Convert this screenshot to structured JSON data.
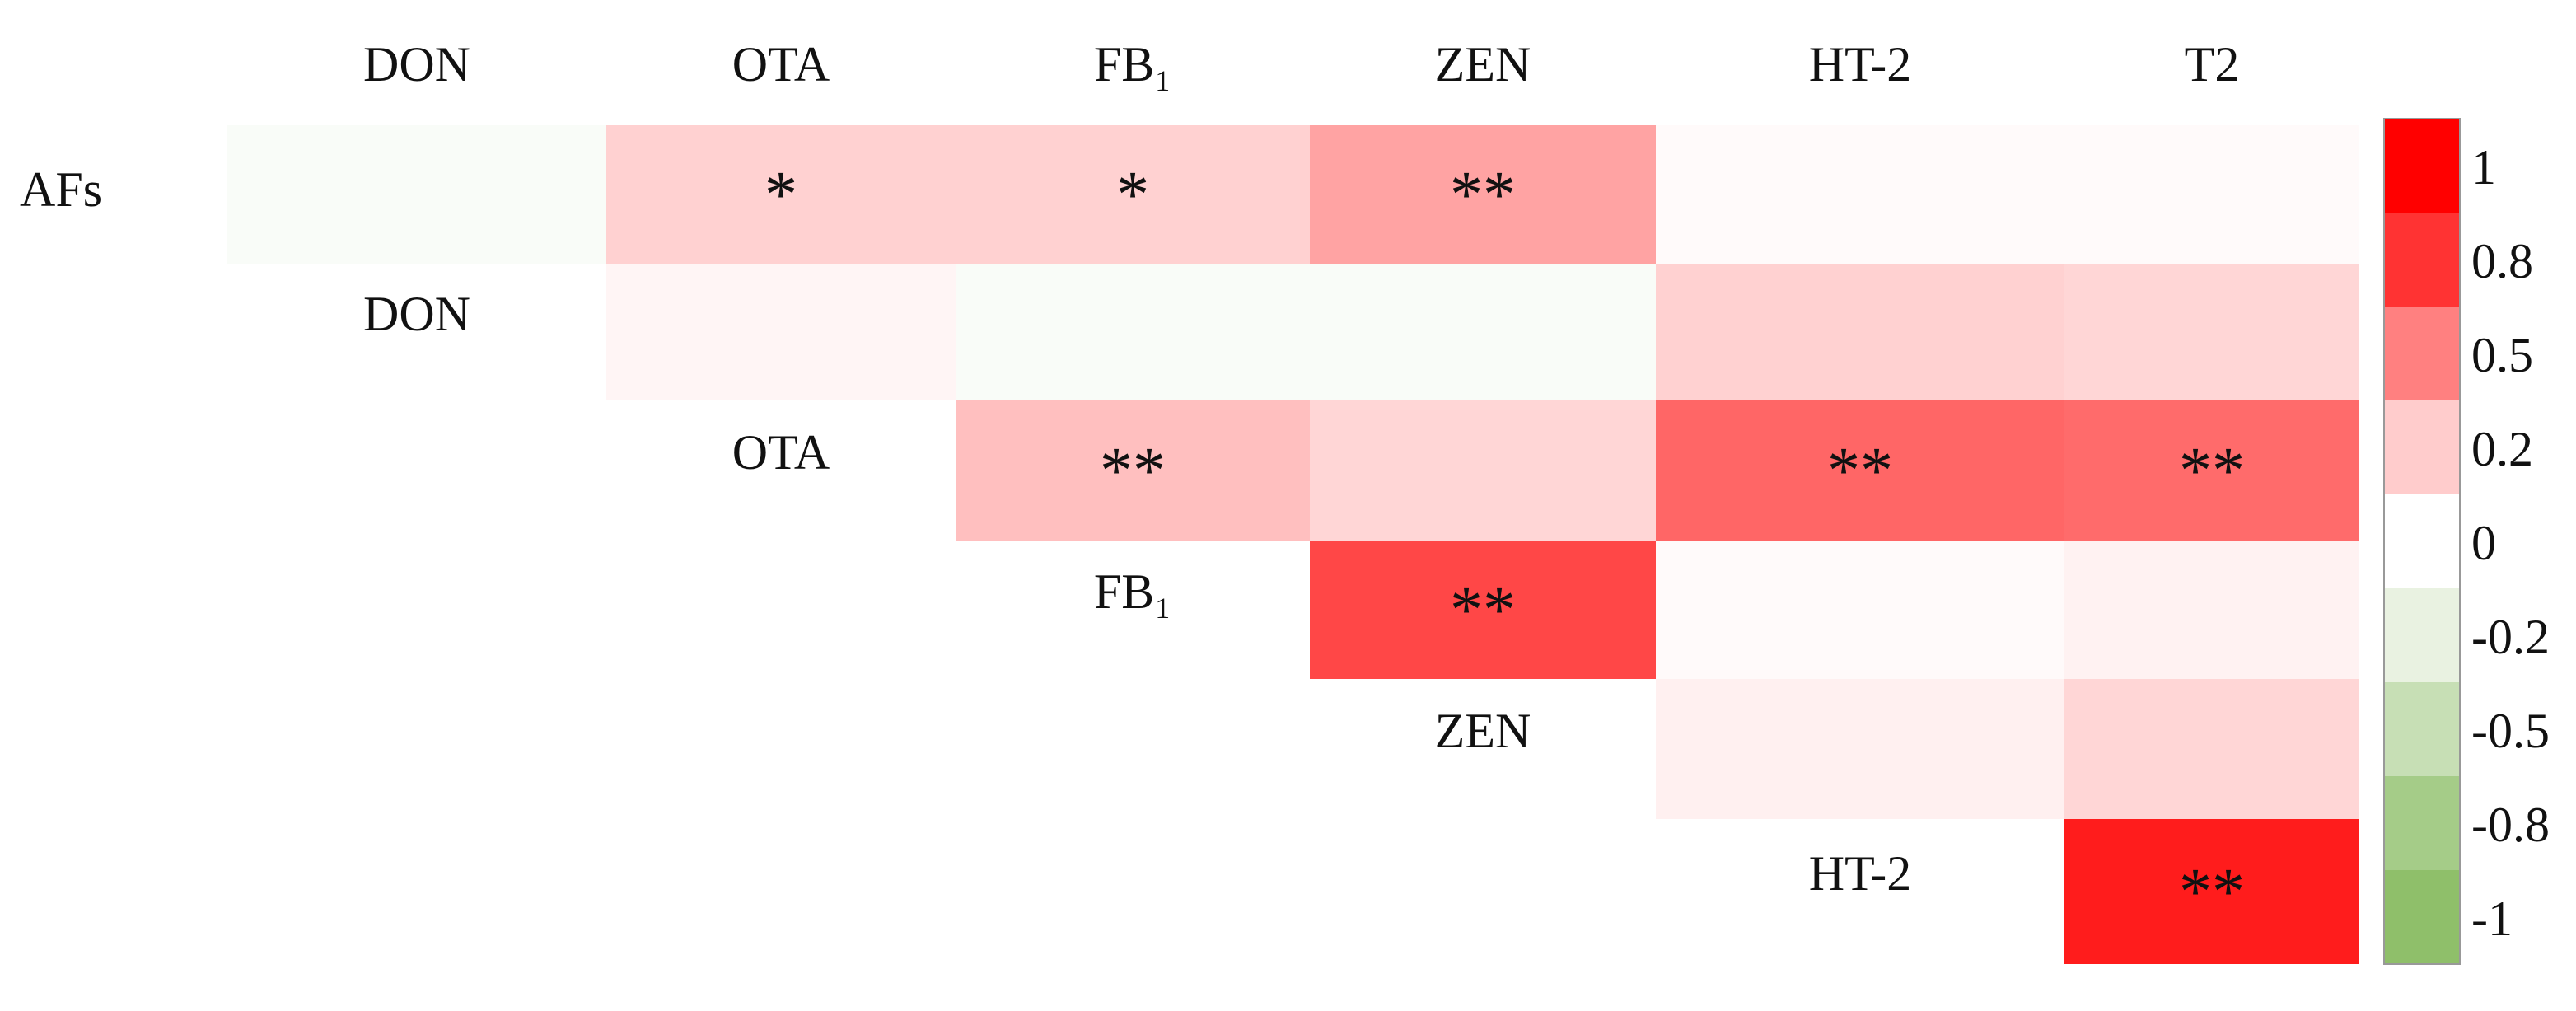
{
  "chart_data": {
    "type": "heatmap",
    "columns": [
      "DON",
      "OTA",
      "FB₁",
      "ZEN",
      "HT-2",
      "T2"
    ],
    "rows": [
      "AFs",
      "DON",
      "OTA",
      "FB₁",
      "ZEN",
      "HT-2"
    ],
    "values": [
      [
        -0.05,
        0.18,
        0.18,
        0.36,
        0.02,
        0.02
      ],
      [
        null,
        0.04,
        -0.05,
        -0.05,
        0.18,
        0.16
      ],
      [
        null,
        null,
        0.25,
        0.16,
        0.6,
        0.58
      ],
      [
        null,
        null,
        null,
        0.72,
        0.02,
        0.05
      ],
      [
        null,
        null,
        null,
        null,
        0.06,
        0.16
      ],
      [
        null,
        null,
        null,
        null,
        null,
        0.89
      ]
    ],
    "annotations": [
      [
        null,
        "*",
        "*",
        "**",
        null,
        null
      ],
      [
        null,
        null,
        null,
        null,
        null,
        null
      ],
      [
        null,
        null,
        "**",
        null,
        "**",
        "**"
      ],
      [
        null,
        null,
        null,
        "**",
        null,
        null
      ],
      [
        null,
        null,
        null,
        null,
        null,
        null
      ],
      [
        null,
        null,
        null,
        null,
        null,
        "**"
      ]
    ],
    "colorscale": [
      [
        -1,
        "#8fbf6a"
      ],
      [
        0,
        "#ffffff"
      ],
      [
        1,
        "#ff0000"
      ]
    ],
    "colorbar_ticks": [
      1,
      0.8,
      0.5,
      0.2,
      0,
      -0.2,
      -0.5,
      -0.8,
      -1
    ]
  }
}
